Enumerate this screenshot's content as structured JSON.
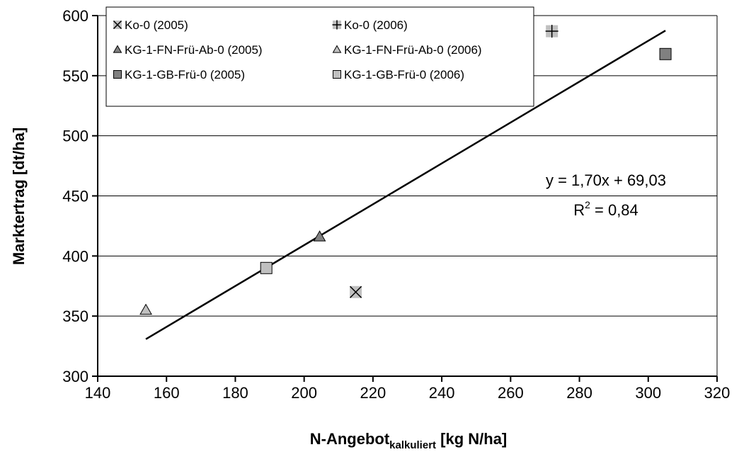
{
  "chart_data": {
    "type": "scatter",
    "xlabel": {
      "main": "N-Angebot",
      "sub": "kalkuliert",
      "rest": " [kg N/ha]"
    },
    "ylabel": "Marktertrag [dt/ha]",
    "xlim": [
      140,
      320
    ],
    "ylim": [
      300,
      600
    ],
    "xticks": [
      140,
      160,
      180,
      200,
      220,
      240,
      260,
      280,
      300,
      320
    ],
    "yticks": [
      300,
      350,
      400,
      450,
      500,
      550,
      600
    ],
    "grid": "horizontal",
    "legend_position": "top-left",
    "series": [
      {
        "name": "Ko-0 (2005)",
        "marker": "x-square",
        "color": "#c0c0c0",
        "points": [
          {
            "x": 215,
            "y": 370
          }
        ]
      },
      {
        "name": "Ko-0 (2006)",
        "marker": "plus-square",
        "color": "#c0c0c0",
        "points": [
          {
            "x": 272,
            "y": 587
          }
        ]
      },
      {
        "name": "KG-1-FN-Frü-Ab-0 (2005)",
        "marker": "triangle",
        "color": "#808080",
        "points": [
          {
            "x": 204.5,
            "y": 416
          }
        ]
      },
      {
        "name": "KG-1-FN-Frü-Ab-0 (2006)",
        "marker": "triangle",
        "color": "#c0c0c0",
        "points": [
          {
            "x": 154,
            "y": 355
          }
        ]
      },
      {
        "name": "KG-1-GB-Frü-0 (2005)",
        "marker": "square",
        "color": "#808080",
        "points": [
          {
            "x": 305,
            "y": 568
          }
        ]
      },
      {
        "name": "KG-1-GB-Frü-0 (2006)",
        "marker": "square",
        "color": "#c0c0c0",
        "points": [
          {
            "x": 189,
            "y": 390
          }
        ]
      }
    ],
    "trendline": {
      "slope": 1.7,
      "intercept": 69.03,
      "x_range": [
        154,
        305
      ],
      "equation": "y = 1,70x + 69,03",
      "r2_label": "R",
      "r2_sup": "2",
      "r2_value": " = 0,84"
    }
  }
}
